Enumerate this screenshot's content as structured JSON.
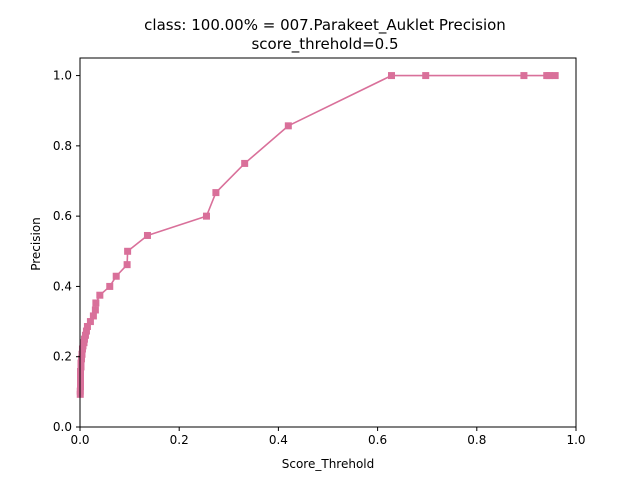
{
  "chart_data": {
    "type": "line",
    "title": "class: 100.00% = 007.Parakeet_Auklet Precision",
    "subtitle": "score_threhold=0.5",
    "xlabel": "Score_Threhold",
    "ylabel": "Precision",
    "xlim": [
      0.0,
      1.0
    ],
    "ylim": [
      0.0,
      1.05
    ],
    "xticks": [
      "0.0",
      "0.2",
      "0.4",
      "0.6",
      "0.8",
      "1.0"
    ],
    "yticks": [
      "0.0",
      "0.2",
      "0.4",
      "0.6",
      "0.8",
      "1.0"
    ],
    "grid": false,
    "legend": "none",
    "series": [
      {
        "color": "#d9709a",
        "marker": "square",
        "x": [
          0.958,
          0.946,
          0.941,
          0.895,
          0.697,
          0.628,
          0.42,
          0.332,
          0.274,
          0.255,
          0.136,
          0.096,
          0.095,
          0.073,
          0.06,
          0.04,
          0.032,
          0.031,
          0.027,
          0.021,
          0.015,
          0.013,
          0.011,
          0.009,
          0.008,
          0.006,
          0.005,
          0.004,
          0.003,
          0.002,
          0.002,
          0.001,
          0.001,
          0.001,
          0.001,
          0.001,
          0.0005,
          0.0005
        ],
        "y": [
          1.0,
          1.0,
          1.0,
          1.0,
          1.0,
          1.0,
          0.857,
          0.75,
          0.667,
          0.6,
          0.545,
          0.5,
          0.462,
          0.429,
          0.4,
          0.375,
          0.353,
          0.333,
          0.316,
          0.3,
          0.286,
          0.273,
          0.261,
          0.25,
          0.24,
          0.231,
          0.222,
          0.207,
          0.194,
          0.182,
          0.171,
          0.158,
          0.146,
          0.135,
          0.125,
          0.114,
          0.102,
          0.093
        ]
      }
    ]
  }
}
